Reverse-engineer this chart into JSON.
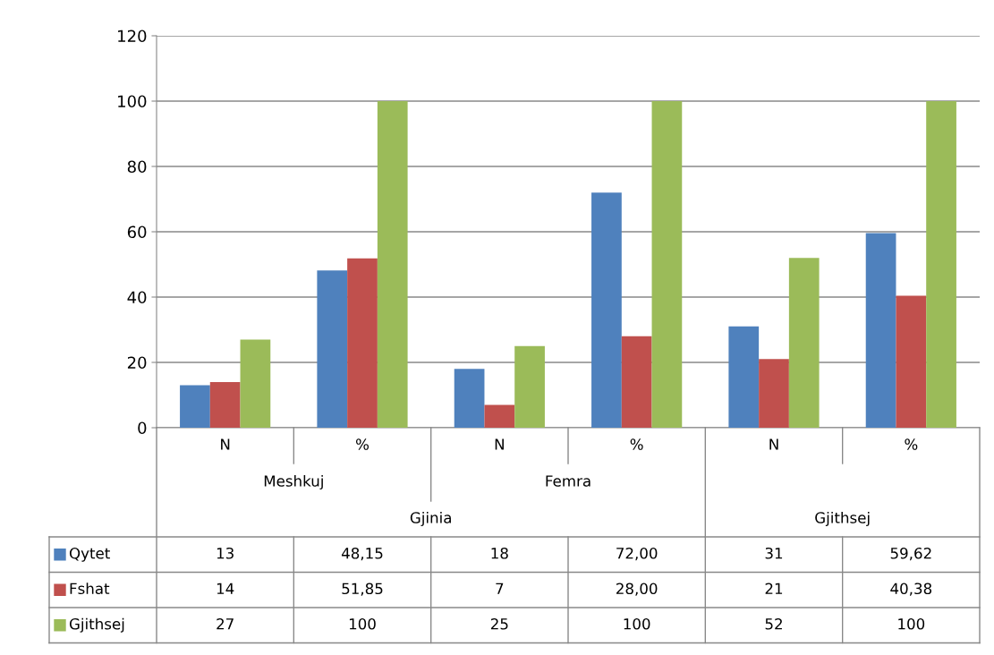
{
  "chart_data": {
    "type": "bar",
    "categories": [
      "N",
      "%",
      "N",
      "%",
      "N",
      "%"
    ],
    "series": [
      {
        "name": "Qytet",
        "color": "#4f81bd",
        "values": [
          13,
          48.15,
          18,
          72.0,
          31,
          59.62
        ],
        "value_labels": [
          "13",
          "48,15",
          "18",
          "72,00",
          "31",
          "59,62"
        ]
      },
      {
        "name": "Fshat",
        "color": "#c0504d",
        "values": [
          14,
          51.85,
          7,
          28.0,
          21,
          40.38
        ],
        "value_labels": [
          "14",
          "51,85",
          "7",
          "28,00",
          "21",
          "40,38"
        ]
      },
      {
        "name": "Gjithsej",
        "color": "#9bbb59",
        "values": [
          27,
          100,
          25,
          100,
          52,
          100
        ],
        "value_labels": [
          "27",
          "100",
          "25",
          "100",
          "52",
          "100"
        ]
      }
    ],
    "annotations": [
      "Meshkuj",
      "Femra",
      "Gjinia",
      "Gjithsej"
    ],
    "legend": "bottom",
    "ylim": [
      0,
      120
    ],
    "yticks": [
      0,
      20,
      40,
      60,
      80,
      100,
      120
    ],
    "grid": "y"
  }
}
